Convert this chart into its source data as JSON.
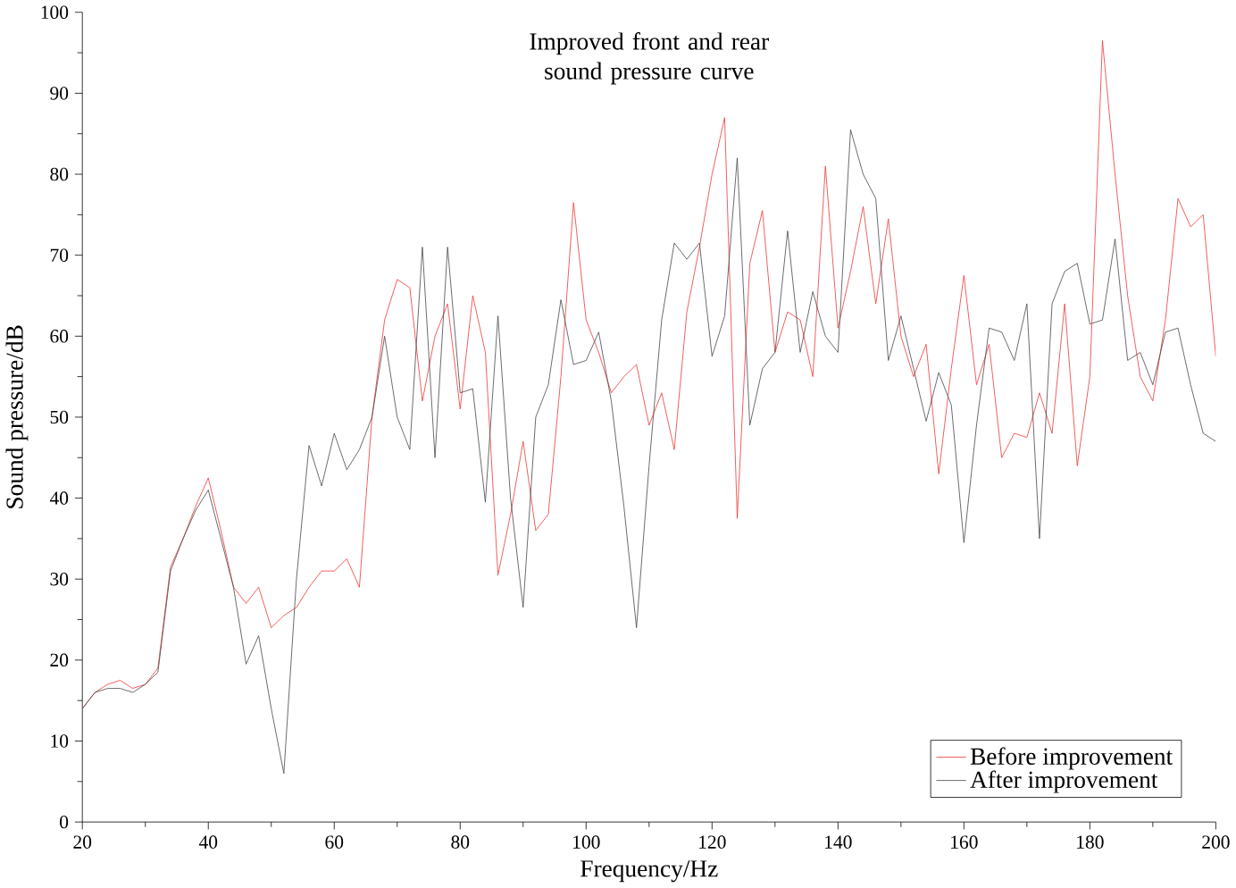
{
  "chart_data": {
    "type": "line",
    "title": "Improved front and rear sound pressure curve",
    "xlabel": "Frequency/Hz",
    "ylabel": "Sound pressure/dB",
    "x": [
      20,
      22,
      24,
      26,
      28,
      30,
      32,
      34,
      36,
      38,
      40,
      42,
      44,
      46,
      48,
      50,
      52,
      54,
      56,
      58,
      60,
      62,
      64,
      66,
      68,
      70,
      72,
      74,
      76,
      78,
      80,
      82,
      84,
      86,
      88,
      90,
      92,
      94,
      96,
      98,
      100,
      102,
      104,
      106,
      108,
      110,
      112,
      114,
      116,
      118,
      120,
      122,
      124,
      126,
      128,
      130,
      132,
      134,
      136,
      138,
      140,
      142,
      144,
      146,
      148,
      150,
      152,
      154,
      156,
      158,
      160,
      162,
      164,
      166,
      168,
      170,
      172,
      174,
      176,
      178,
      180,
      182,
      184,
      186,
      188,
      190,
      192,
      194,
      196,
      198,
      200
    ],
    "series": [
      {
        "name": "Before improvement",
        "color": "#ee3333",
        "values": [
          14,
          16,
          17,
          17.5,
          16.5,
          17,
          19,
          31.5,
          35,
          39,
          42.5,
          36,
          29,
          27,
          29,
          24,
          25.5,
          26.5,
          29,
          31,
          31,
          32.5,
          29,
          50,
          62,
          67,
          66,
          52,
          60,
          64,
          51,
          65,
          58,
          30.5,
          38,
          47,
          36,
          38,
          55,
          76.5,
          62,
          58,
          53,
          55,
          56.5,
          49,
          53,
          46,
          63,
          71,
          80,
          87,
          37.5,
          69,
          75.5,
          58,
          63,
          62,
          55,
          81,
          61,
          68,
          76,
          64,
          74.5,
          60,
          55,
          59,
          43,
          56,
          67.5,
          54,
          59,
          45,
          48,
          47.5,
          53,
          48,
          64,
          44,
          55,
          96.5,
          80,
          65,
          55,
          52,
          62,
          77,
          73.5,
          75,
          57.5
        ]
      },
      {
        "name": "After improvement",
        "color": "#444444",
        "values": [
          14,
          16,
          16.5,
          16.5,
          16,
          17,
          18.5,
          31,
          35,
          38.5,
          41,
          35,
          29,
          19.5,
          23,
          14,
          6,
          30,
          46.5,
          41.5,
          48,
          43.5,
          46,
          50,
          60,
          50,
          46,
          71,
          45,
          71,
          53,
          53.5,
          39.5,
          62.5,
          40,
          26.5,
          50,
          54,
          64.5,
          56.5,
          57,
          60.5,
          52,
          39,
          24,
          44,
          62,
          71.5,
          69.5,
          71.5,
          57.5,
          62.5,
          82,
          49,
          56,
          58,
          73,
          58,
          65.5,
          60,
          58,
          85.5,
          80,
          77,
          57,
          62.5,
          56,
          49.5,
          55.5,
          51.5,
          34.5,
          49,
          61,
          60.5,
          57,
          64,
          35,
          64,
          68,
          69,
          61.5,
          62,
          72,
          57,
          58,
          54,
          60.5,
          61,
          54,
          48,
          47
        ]
      }
    ],
    "xlim": [
      20,
      200
    ],
    "ylim": [
      0,
      100
    ],
    "xticks": [
      20,
      40,
      60,
      80,
      100,
      120,
      140,
      160,
      180,
      200
    ],
    "yticks": [
      0,
      10,
      20,
      30,
      40,
      50,
      60,
      70,
      80,
      90,
      100
    ],
    "legend": "bottom right",
    "grid": false,
    "marker": "none",
    "line_style": "solid"
  }
}
